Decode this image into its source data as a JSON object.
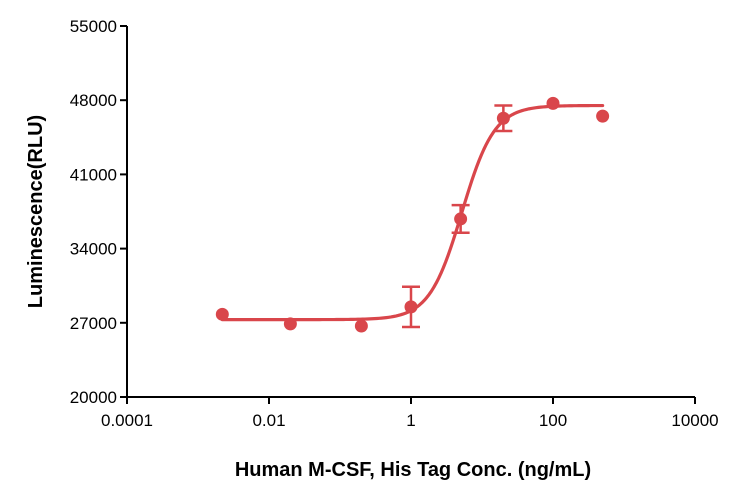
{
  "chart_data": {
    "type": "scatter",
    "title": "",
    "xlabel": "Human M-CSF, His Tag Conc. (ng/mL)",
    "ylabel": "Luminescence(RLU)",
    "xscale": "log",
    "xlim": [
      0.0001,
      10000
    ],
    "ylim": [
      20000,
      55000
    ],
    "x_ticks": [
      0.0001,
      0.01,
      1,
      100,
      10000
    ],
    "x_tick_labels": [
      "0.0001",
      "0.01",
      "1",
      "100",
      "10000"
    ],
    "y_ticks": [
      20000,
      27000,
      34000,
      41000,
      48000,
      55000
    ],
    "y_tick_labels": [
      "20000",
      "27000",
      "34000",
      "41000",
      "48000",
      "55000"
    ],
    "grid": false,
    "legend": "none",
    "series": [
      {
        "points": [
          {
            "x": 0.0022,
            "y": 27800,
            "err": 0
          },
          {
            "x": 0.02,
            "y": 26900,
            "err": 0
          },
          {
            "x": 0.2,
            "y": 26700,
            "err": 0
          },
          {
            "x": 1.0,
            "y": 28500,
            "err": 1900
          },
          {
            "x": 5.0,
            "y": 36800,
            "err": 1300
          },
          {
            "x": 20.0,
            "y": 46300,
            "err": 1200
          },
          {
            "x": 100.0,
            "y": 47700,
            "err": 0
          },
          {
            "x": 500.0,
            "y": 46500,
            "err": 0
          }
        ],
        "fit": {
          "model": "4PL",
          "bottom": 27300,
          "top": 47500,
          "ec50": 5.2,
          "hill": 1.9
        }
      }
    ],
    "colors": {
      "series": "#d9464b",
      "axis": "#000000"
    }
  }
}
